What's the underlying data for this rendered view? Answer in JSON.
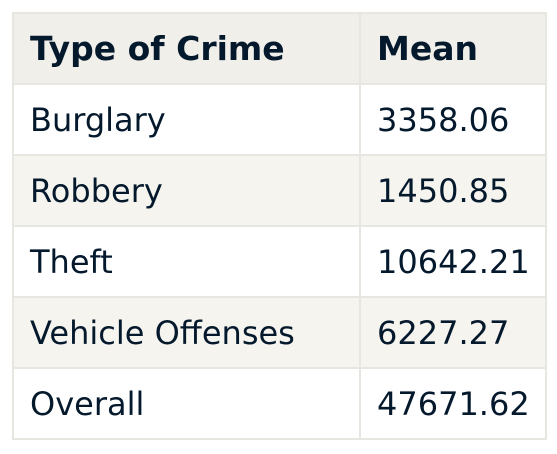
{
  "table": {
    "headers": [
      "Type of Crime",
      "Mean"
    ],
    "rows": [
      [
        "Burglary",
        "3358.06"
      ],
      [
        "Robbery",
        "1450.85"
      ],
      [
        "Theft",
        "10642.21"
      ],
      [
        "Vehicle Offenses",
        "6227.27"
      ],
      [
        "Overall",
        "47671.62"
      ]
    ]
  }
}
